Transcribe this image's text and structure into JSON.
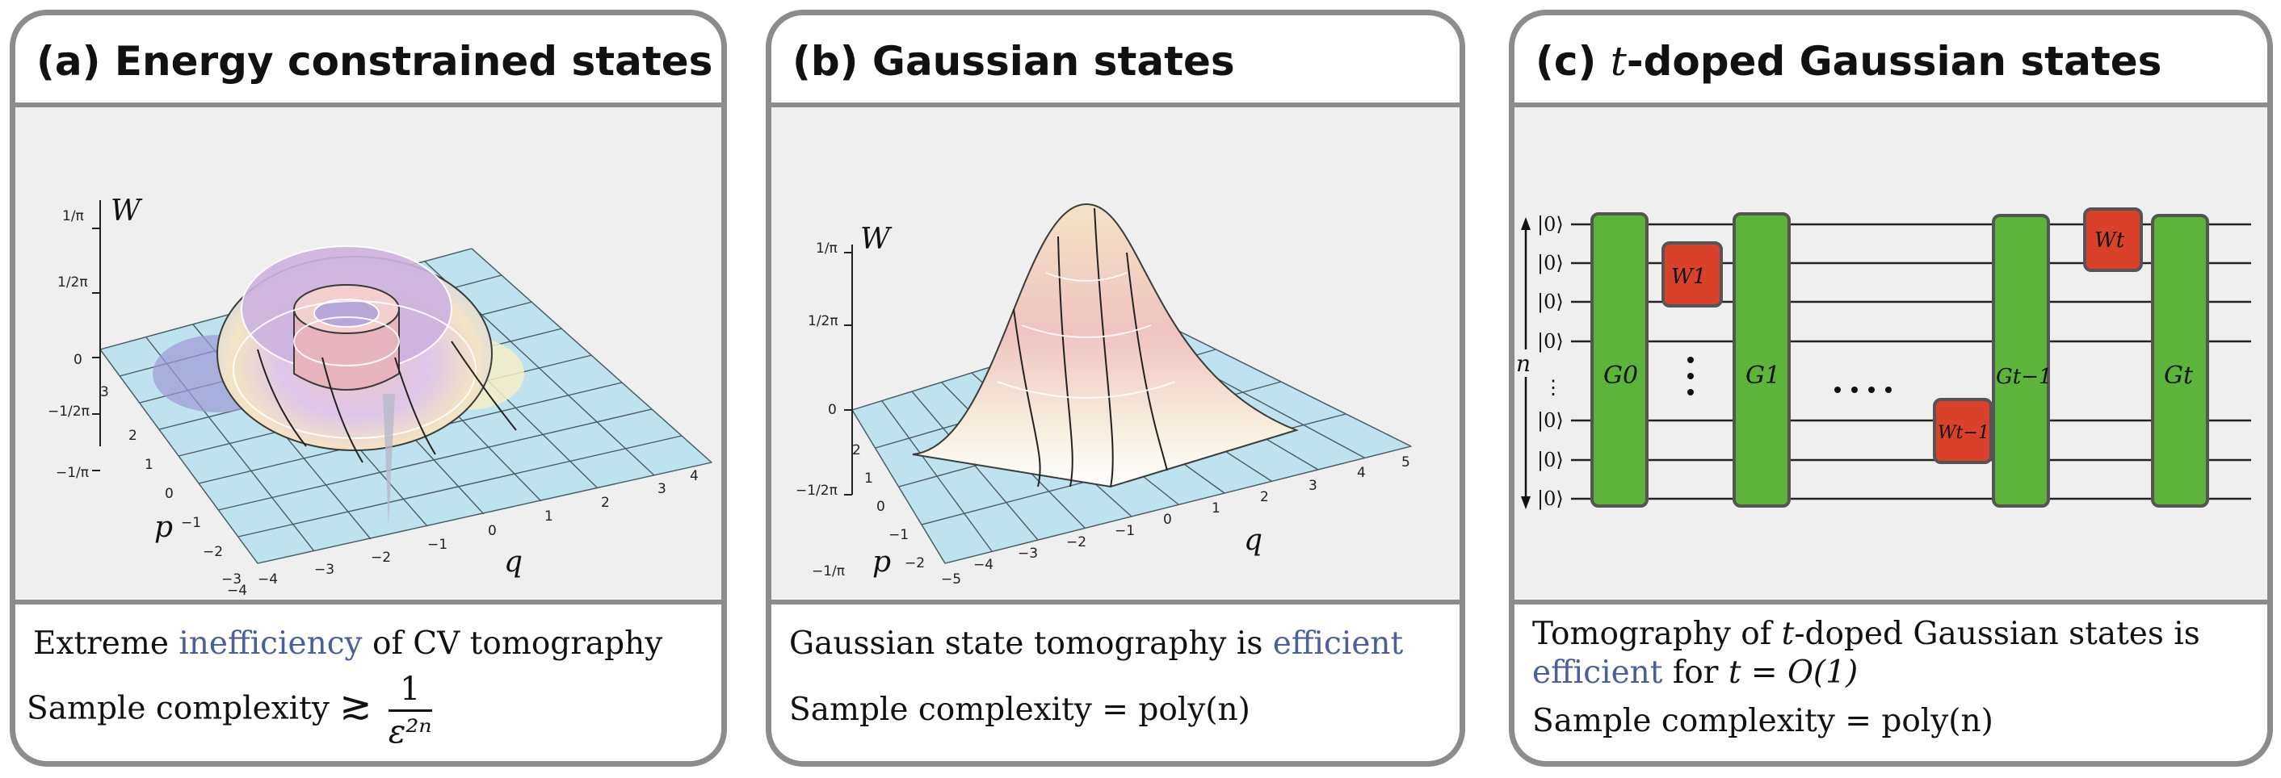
{
  "panels": [
    {
      "title_prefix": "(a) Energy constrained states",
      "w_label": "W",
      "z_ticks": [
        "1/π",
        "1/2π",
        "0",
        "−1/2π",
        "−1/π"
      ],
      "q_ticks": [
        "−4",
        "−3",
        "−2",
        "−1",
        "0",
        "1",
        "2",
        "3",
        "4"
      ],
      "p_ticks": [
        "3",
        "2",
        "1",
        "0",
        "−1",
        "−2",
        "−3",
        "−4"
      ],
      "q_label": "q",
      "p_label": "p",
      "caption_line1_pre": "Extreme ",
      "caption_line1_hl": "inefficiency",
      "caption_line1_post": " of CV tomography",
      "caption_line2_pre": "Sample complexity",
      "caption_line2_rel": "≳",
      "caption_frac_num": "1",
      "caption_frac_den": "ε²ⁿ"
    },
    {
      "title_prefix": "(b) Gaussian states",
      "w_label": "W",
      "z_ticks": [
        "1/π",
        "1/2π",
        "0",
        "−1/2π",
        "−1/π"
      ],
      "q_ticks": [
        "−5",
        "−4",
        "−3",
        "−2",
        "−1",
        "0",
        "1",
        "2",
        "3",
        "4",
        "5"
      ],
      "p_ticks": [
        "2",
        "1",
        "0",
        "−1",
        "−2"
      ],
      "q_label": "q",
      "p_label": "p",
      "caption_line1_pre": "Gaussian state tomography is ",
      "caption_line1_hl": "efficient",
      "caption_line2_pre": "Sample complexity",
      "caption_line2_math": "= poly(n)"
    },
    {
      "title_prefix": "(c) ",
      "title_italic": "t",
      "title_suffix": "-doped Gaussian states",
      "kets": [
        "|0⟩",
        "|0⟩",
        "|0⟩",
        "|0⟩",
        "⋮",
        "|0⟩",
        "|0⟩",
        "|0⟩"
      ],
      "n_label": "n",
      "gates_green": [
        "G0",
        "G1",
        "Gt−1",
        "Gt"
      ],
      "gates_red": [
        "W1",
        "Wt−1",
        "Wt"
      ],
      "caption_line1_pre": "Tomography of ",
      "caption_line1_t": "t",
      "caption_line1_post": "-doped Gaussian states is",
      "caption_line2_hl": "efficient",
      "caption_line2_post": " for ",
      "caption_line2_math": "t = O(1)",
      "caption_line3_pre": "Sample complexity",
      "caption_line3_math": "= poly(n)"
    }
  ],
  "colors": {
    "border": "#8c8c8c",
    "figure_bg": "#efefef",
    "plane": "#bfe3ee",
    "gate_green": "#5cb53a",
    "gate_red": "#d9412b",
    "highlight": "#4a5f9b"
  }
}
